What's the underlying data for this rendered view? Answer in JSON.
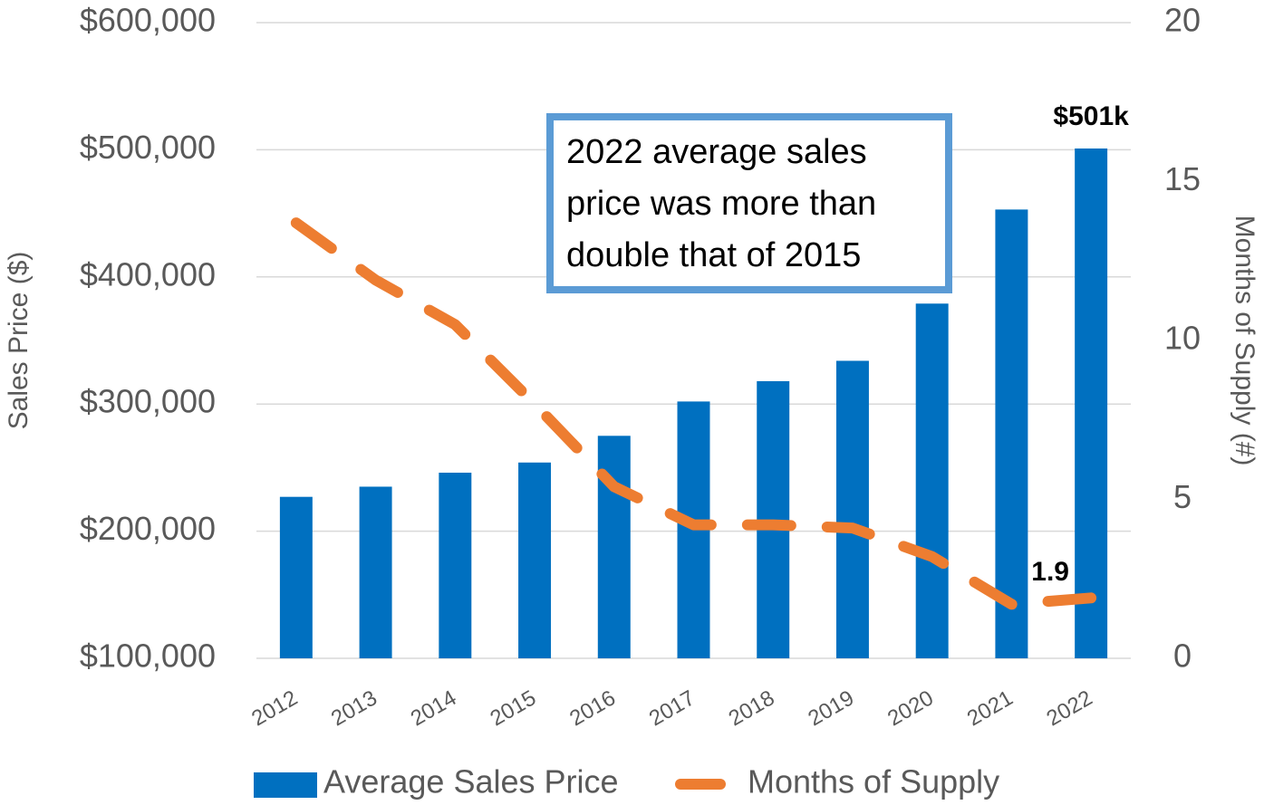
{
  "chart_data": {
    "type": "bar_line",
    "categories": [
      "2012",
      "2013",
      "2014",
      "2015",
      "2016",
      "2017",
      "2018",
      "2019",
      "2020",
      "2021",
      "2022"
    ],
    "series": [
      {
        "name": "Average Sales Price",
        "type": "bar",
        "color": "#0070c0",
        "values": [
          227000,
          235000,
          246000,
          254000,
          275000,
          302000,
          318000,
          334000,
          379000,
          453000,
          501000
        ],
        "value_labels": [
          null,
          null,
          null,
          null,
          null,
          null,
          null,
          null,
          null,
          null,
          "$501k"
        ]
      },
      {
        "name": "Months of Supply",
        "type": "line",
        "axis": "y2",
        "color": "#ed7d31",
        "values": [
          13.7,
          11.9,
          10.5,
          8.0,
          5.4,
          4.2,
          4.2,
          4.1,
          3.2,
          1.7,
          1.9
        ],
        "value_labels": [
          null,
          null,
          null,
          null,
          null,
          null,
          null,
          null,
          null,
          null,
          "1.9"
        ]
      }
    ],
    "ylabel": "Sales Price ($)",
    "y2label": "Months of Supply (#)",
    "ylim": [
      100000,
      600000
    ],
    "yticks": [
      {
        "value": 100000,
        "label": "$100,000"
      },
      {
        "value": 200000,
        "label": "$200,000"
      },
      {
        "value": 300000,
        "label": "$300,000"
      },
      {
        "value": 400000,
        "label": "$400,000"
      },
      {
        "value": 500000,
        "label": "$500,000"
      },
      {
        "value": 600000,
        "label": "$600,000"
      }
    ],
    "y2lim": [
      0,
      20
    ],
    "y2ticks": [
      0,
      5,
      10,
      15,
      20
    ],
    "grid": true,
    "legend": "bottom",
    "annotation": [
      "2022 average sales",
      "price was more than",
      "double that of 2015"
    ]
  }
}
